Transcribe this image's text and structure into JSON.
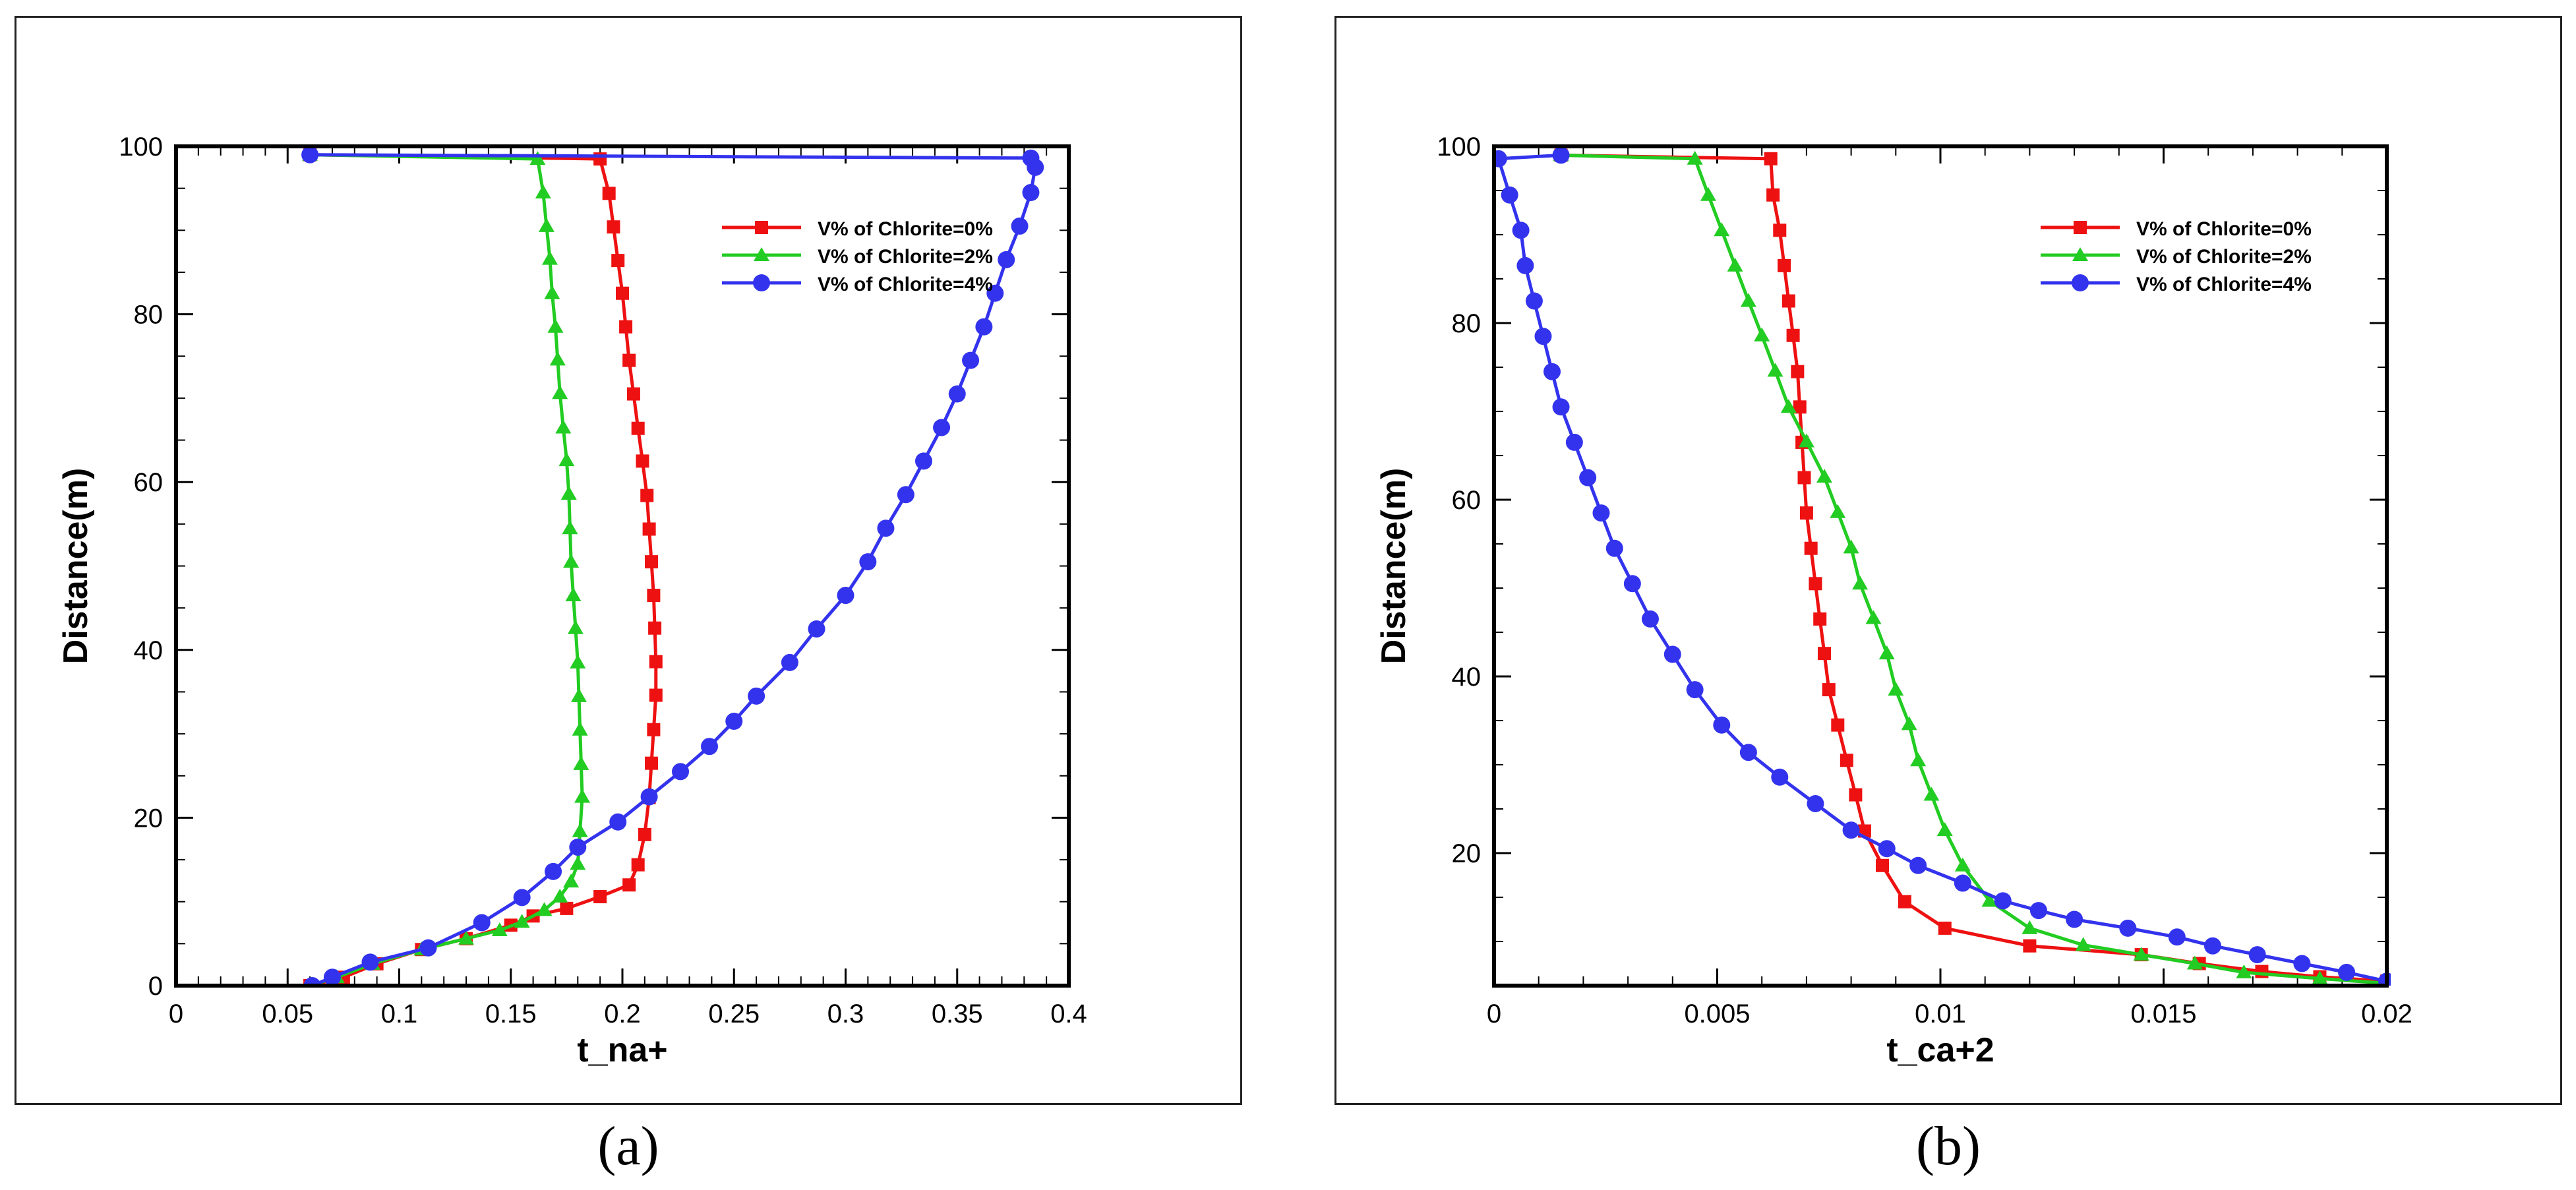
{
  "captions": {
    "a": "(a)",
    "b": "(b)"
  },
  "chart_data": [
    {
      "type": "line",
      "panel": "a",
      "xlabel": "t_na+",
      "ylabel": "Distance(m)",
      "xlim": [
        0,
        0.4
      ],
      "ylim": [
        0,
        100
      ],
      "xticks": [
        0,
        0.05,
        0.1,
        0.15,
        0.2,
        0.25,
        0.3,
        0.35,
        0.4
      ],
      "xtick_labels": [
        "0",
        "0.05",
        "0.1",
        "0.15",
        "0.2",
        "0.25",
        "0.3",
        "0.35",
        "0.4"
      ],
      "yticks": [
        0,
        20,
        40,
        60,
        80,
        100
      ],
      "ytick_labels": [
        "0",
        "20",
        "40",
        "60",
        "80",
        "100"
      ],
      "legend_position": "top-right",
      "series": [
        {
          "name": "V% of Chlorite=0%",
          "color": "#ee1111",
          "marker": "square",
          "points": [
            [
              0.06,
              0
            ],
            [
              0.075,
              1
            ],
            [
              0.09,
              2.6
            ],
            [
              0.11,
              4.3
            ],
            [
              0.13,
              5.6
            ],
            [
              0.15,
              7.2
            ],
            [
              0.16,
              8.3
            ],
            [
              0.175,
              9.2
            ],
            [
              0.19,
              10.6
            ],
            [
              0.203,
              12
            ],
            [
              0.207,
              14.4
            ],
            [
              0.21,
              18
            ],
            [
              0.212,
              22.4
            ],
            [
              0.213,
              26.5
            ],
            [
              0.214,
              30.5
            ],
            [
              0.215,
              34.6
            ],
            [
              0.215,
              38.6
            ],
            [
              0.2145,
              42.6
            ],
            [
              0.214,
              46.5
            ],
            [
              0.213,
              50.5
            ],
            [
              0.212,
              54.4
            ],
            [
              0.211,
              58.4
            ],
            [
              0.209,
              62.5
            ],
            [
              0.207,
              66.4
            ],
            [
              0.205,
              70.5
            ],
            [
              0.203,
              74.5
            ],
            [
              0.2015,
              78.5
            ],
            [
              0.2,
              82.5
            ],
            [
              0.198,
              86.4
            ],
            [
              0.196,
              90.4
            ],
            [
              0.194,
              94.4
            ],
            [
              0.19,
              98.5
            ],
            [
              0.06,
              99
            ]
          ]
        },
        {
          "name": "V% of Chlorite=2%",
          "color": "#22cc22",
          "marker": "triangle",
          "points": [
            [
              0.06,
              0
            ],
            [
              0.072,
              1
            ],
            [
              0.088,
              2.6
            ],
            [
              0.11,
              4.3
            ],
            [
              0.13,
              5.6
            ],
            [
              0.145,
              6.6
            ],
            [
              0.155,
              7.6
            ],
            [
              0.165,
              9
            ],
            [
              0.172,
              10.6
            ],
            [
              0.177,
              12.4
            ],
            [
              0.18,
              14.5
            ],
            [
              0.181,
              18.4
            ],
            [
              0.182,
              22.5
            ],
            [
              0.1815,
              26.4
            ],
            [
              0.181,
              30.5
            ],
            [
              0.1805,
              34.5
            ],
            [
              0.18,
              38.5
            ],
            [
              0.179,
              42.6
            ],
            [
              0.178,
              46.5
            ],
            [
              0.177,
              50.5
            ],
            [
              0.1765,
              54.5
            ],
            [
              0.176,
              58.6
            ],
            [
              0.175,
              62.6
            ],
            [
              0.1735,
              66.5
            ],
            [
              0.172,
              70.6
            ],
            [
              0.171,
              74.6
            ],
            [
              0.17,
              78.5
            ],
            [
              0.1685,
              82.5
            ],
            [
              0.1675,
              86.6
            ],
            [
              0.166,
              90.5
            ],
            [
              0.1645,
              94.5
            ],
            [
              0.162,
              98.5
            ],
            [
              0.06,
              99
            ]
          ]
        },
        {
          "name": "V% of Chlorite=4%",
          "color": "#3333ee",
          "marker": "circle",
          "points": [
            [
              0.061,
              0
            ],
            [
              0.07,
              1
            ],
            [
              0.087,
              2.8
            ],
            [
              0.113,
              4.5
            ],
            [
              0.137,
              7.5
            ],
            [
              0.155,
              10.5
            ],
            [
              0.169,
              13.6
            ],
            [
              0.18,
              16.5
            ],
            [
              0.198,
              19.5
            ],
            [
              0.212,
              22.5
            ],
            [
              0.226,
              25.5
            ],
            [
              0.239,
              28.5
            ],
            [
              0.25,
              31.5
            ],
            [
              0.26,
              34.5
            ],
            [
              0.275,
              38.5
            ],
            [
              0.287,
              42.5
            ],
            [
              0.3,
              46.5
            ],
            [
              0.31,
              50.5
            ],
            [
              0.318,
              54.5
            ],
            [
              0.327,
              58.5
            ],
            [
              0.335,
              62.5
            ],
            [
              0.343,
              66.5
            ],
            [
              0.35,
              70.5
            ],
            [
              0.356,
              74.5
            ],
            [
              0.362,
              78.5
            ],
            [
              0.367,
              82.5
            ],
            [
              0.372,
              86.5
            ],
            [
              0.378,
              90.5
            ],
            [
              0.383,
              94.5
            ],
            [
              0.385,
              97.5
            ],
            [
              0.383,
              98.6
            ],
            [
              0.06,
              99
            ]
          ]
        }
      ]
    },
    {
      "type": "line",
      "panel": "b",
      "xlabel": "t_ca+2",
      "ylabel": "Distance(m)",
      "xlim": [
        0,
        0.02
      ],
      "ylim": [
        5,
        100
      ],
      "xticks": [
        0,
        0.005,
        0.01,
        0.015,
        0.02
      ],
      "xtick_labels": [
        "0",
        "0.005",
        "0.01",
        "0.015",
        "0.02"
      ],
      "yticks": [
        20,
        40,
        60,
        80,
        100
      ],
      "ytick_labels": [
        "20",
        "40",
        "60",
        "80",
        "100"
      ],
      "legend_position": "top-right",
      "series": [
        {
          "name": "V% of Chlorite=0%",
          "color": "#ee1111",
          "marker": "square",
          "points": [
            [
              0.0015,
              99
            ],
            [
              0.0062,
              98.6
            ],
            [
              0.00625,
              94.5
            ],
            [
              0.0064,
              90.5
            ],
            [
              0.0065,
              86.5
            ],
            [
              0.0066,
              82.5
            ],
            [
              0.0067,
              78.6
            ],
            [
              0.0068,
              74.5
            ],
            [
              0.00685,
              70.5
            ],
            [
              0.0069,
              66.5
            ],
            [
              0.00695,
              62.5
            ],
            [
              0.007,
              58.5
            ],
            [
              0.0071,
              54.5
            ],
            [
              0.0072,
              50.5
            ],
            [
              0.0073,
              46.5
            ],
            [
              0.0074,
              42.6
            ],
            [
              0.0075,
              38.5
            ],
            [
              0.0077,
              34.5
            ],
            [
              0.0079,
              30.5
            ],
            [
              0.0081,
              26.6
            ],
            [
              0.0083,
              22.5
            ],
            [
              0.0087,
              18.6
            ],
            [
              0.0092,
              14.5
            ],
            [
              0.0101,
              11.5
            ],
            [
              0.012,
              9.5
            ],
            [
              0.0145,
              8.5
            ],
            [
              0.0158,
              7.5
            ],
            [
              0.0172,
              6.6
            ],
            [
              0.0185,
              6
            ],
            [
              0.02,
              5.5
            ]
          ]
        },
        {
          "name": "V% of Chlorite=2%",
          "color": "#22cc22",
          "marker": "triangle",
          "points": [
            [
              0.0015,
              99
            ],
            [
              0.0045,
              98.6
            ],
            [
              0.0048,
              94.5
            ],
            [
              0.0051,
              90.5
            ],
            [
              0.0054,
              86.5
            ],
            [
              0.0057,
              82.5
            ],
            [
              0.006,
              78.6
            ],
            [
              0.0063,
              74.6
            ],
            [
              0.0066,
              70.5
            ],
            [
              0.007,
              66.6
            ],
            [
              0.0074,
              62.6
            ],
            [
              0.0077,
              58.6
            ],
            [
              0.008,
              54.6
            ],
            [
              0.0082,
              50.5
            ],
            [
              0.0085,
              46.6
            ],
            [
              0.0088,
              42.6
            ],
            [
              0.009,
              38.5
            ],
            [
              0.0093,
              34.6
            ],
            [
              0.0095,
              30.5
            ],
            [
              0.0098,
              26.6
            ],
            [
              0.0101,
              22.6
            ],
            [
              0.0105,
              18.6
            ],
            [
              0.0111,
              14.6
            ],
            [
              0.012,
              11.5
            ],
            [
              0.0132,
              9.6
            ],
            [
              0.0145,
              8.5
            ],
            [
              0.0157,
              7.5
            ],
            [
              0.0168,
              6.5
            ],
            [
              0.0185,
              5.8
            ],
            [
              0.0199,
              5.3
            ]
          ]
        },
        {
          "name": "V% of Chlorite=4%",
          "color": "#3333ee",
          "marker": "circle",
          "points": [
            [
              0.0015,
              99
            ],
            [
              0.0001,
              98.6
            ],
            [
              0.00035,
              94.5
            ],
            [
              0.0006,
              90.5
            ],
            [
              0.0007,
              86.5
            ],
            [
              0.0009,
              82.5
            ],
            [
              0.0011,
              78.5
            ],
            [
              0.0013,
              74.5
            ],
            [
              0.0015,
              70.5
            ],
            [
              0.0018,
              66.5
            ],
            [
              0.0021,
              62.5
            ],
            [
              0.0024,
              58.5
            ],
            [
              0.0027,
              54.5
            ],
            [
              0.0031,
              50.5
            ],
            [
              0.0035,
              46.5
            ],
            [
              0.004,
              42.5
            ],
            [
              0.0045,
              38.5
            ],
            [
              0.0051,
              34.5
            ],
            [
              0.0057,
              31.4
            ],
            [
              0.0064,
              28.6
            ],
            [
              0.0072,
              25.6
            ],
            [
              0.008,
              22.6
            ],
            [
              0.0088,
              20.5
            ],
            [
              0.0095,
              18.6
            ],
            [
              0.0105,
              16.6
            ],
            [
              0.0114,
              14.6
            ],
            [
              0.0122,
              13.5
            ],
            [
              0.013,
              12.5
            ],
            [
              0.0142,
              11.5
            ],
            [
              0.0153,
              10.5
            ],
            [
              0.0161,
              9.5
            ],
            [
              0.0171,
              8.5
            ],
            [
              0.0181,
              7.5
            ],
            [
              0.0191,
              6.5
            ],
            [
              0.02,
              5.5
            ]
          ]
        }
      ]
    }
  ]
}
